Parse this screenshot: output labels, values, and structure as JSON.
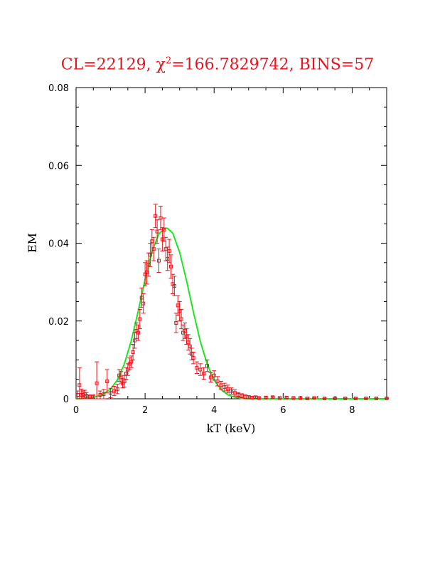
{
  "chart_data": {
    "type": "scatter",
    "title_prefix": "CL=22129, ",
    "title_chi": "χ",
    "title_sup": "2",
    "title_suffix": "=166.7829742, BINS=57",
    "xlabel": "kT (keV)",
    "ylabel": "EM",
    "xlim": [
      0,
      9
    ],
    "ylim": [
      0,
      0.08
    ],
    "x_ticks": [
      "0",
      "2",
      "4",
      "6",
      "8"
    ],
    "y_ticks": [
      "0",
      "0.02",
      "0.04",
      "0.06",
      "0.08"
    ],
    "colors": {
      "data": "#e8141b",
      "model": "#1ee61e",
      "title": "#e8141b"
    },
    "series": [
      {
        "kind": "data-points",
        "x": [
          0.05,
          0.1,
          0.15,
          0.2,
          0.25,
          0.3,
          0.4,
          0.5,
          0.6,
          0.7,
          0.8,
          0.9,
          1.0,
          1.1,
          1.2,
          1.25,
          1.3,
          1.35,
          1.4,
          1.45,
          1.5,
          1.55,
          1.6,
          1.65,
          1.7,
          1.75,
          1.8,
          1.85,
          1.9,
          1.95,
          2.0,
          2.05,
          2.1,
          2.15,
          2.2,
          2.25,
          2.3,
          2.35,
          2.4,
          2.45,
          2.5,
          2.55,
          2.6,
          2.65,
          2.7,
          2.75,
          2.8,
          2.85,
          2.9,
          2.95,
          3.0,
          3.05,
          3.1,
          3.15,
          3.2,
          3.25,
          3.3,
          3.35,
          3.4,
          3.5,
          3.6,
          3.7,
          3.8,
          3.9,
          4.0,
          4.1,
          4.2,
          4.3,
          4.4,
          4.5,
          4.6,
          4.7,
          4.8,
          4.9,
          5.0,
          5.1,
          5.2,
          5.3,
          5.5,
          5.7,
          5.9,
          6.1,
          6.3,
          6.5,
          6.7,
          6.9,
          7.2,
          7.5,
          7.8,
          8.1,
          8.4,
          8.7,
          9.0
        ],
        "y": [
          0.001,
          0.0035,
          0.001,
          0.001,
          0.0012,
          0.0008,
          0.0005,
          0.0005,
          0.004,
          0.001,
          0.0012,
          0.0045,
          0.0015,
          0.002,
          0.0025,
          0.006,
          0.0055,
          0.004,
          0.0045,
          0.0065,
          0.0075,
          0.009,
          0.0095,
          0.012,
          0.015,
          0.0175,
          0.017,
          0.0205,
          0.026,
          0.0245,
          0.032,
          0.0325,
          0.0345,
          0.037,
          0.0405,
          0.0385,
          0.047,
          0.043,
          0.0355,
          0.0465,
          0.041,
          0.0435,
          0.0385,
          0.036,
          0.038,
          0.034,
          0.0295,
          0.029,
          0.0195,
          0.024,
          0.0225,
          0.0205,
          0.017,
          0.0175,
          0.016,
          0.0145,
          0.0135,
          0.0115,
          0.0105,
          0.008,
          0.0075,
          0.0065,
          0.0085,
          0.0055,
          0.006,
          0.0045,
          0.0035,
          0.003,
          0.0025,
          0.002,
          0.0015,
          0.001,
          0.0008,
          0.0005,
          0.0004,
          0.0003,
          0.0004,
          0.0002,
          0.0003,
          0.0004,
          0.0002,
          0.0003,
          0.0002,
          0.0002,
          0.0001,
          0.0002,
          0.0001,
          0.0001,
          0.0001,
          0.0001,
          0.0001,
          0.0001,
          0.0001
        ],
        "err": [
          0.001,
          0.0045,
          0.0015,
          0.001,
          0.001,
          0.0008,
          0.0005,
          0.0005,
          0.0055,
          0.001,
          0.0012,
          0.003,
          0.0012,
          0.0012,
          0.0012,
          0.0015,
          0.0015,
          0.0012,
          0.0015,
          0.0015,
          0.0015,
          0.0015,
          0.0015,
          0.002,
          0.002,
          0.002,
          0.002,
          0.0025,
          0.0025,
          0.0025,
          0.003,
          0.003,
          0.003,
          0.003,
          0.003,
          0.003,
          0.003,
          0.003,
          0.003,
          0.003,
          0.003,
          0.003,
          0.003,
          0.003,
          0.003,
          0.003,
          0.0025,
          0.0025,
          0.0025,
          0.0025,
          0.0025,
          0.0025,
          0.002,
          0.002,
          0.002,
          0.002,
          0.002,
          0.0015,
          0.0015,
          0.0015,
          0.0015,
          0.0015,
          0.0015,
          0.0012,
          0.0012,
          0.0012,
          0.001,
          0.001,
          0.001,
          0.0008,
          0.0008,
          0.0006,
          0.0005,
          0.0005,
          0.0004,
          0.0003,
          0.0003,
          0.0002,
          0.0002,
          0.0002,
          0.0002,
          0.0002,
          0.0002,
          0.0002,
          0.0001,
          0.0001,
          0.0001,
          0.0001,
          0.0001,
          0.0001,
          0.0001,
          0.0001,
          0.0001
        ]
      },
      {
        "kind": "model-curve",
        "x": [
          0.0,
          0.25,
          0.5,
          0.75,
          1.0,
          1.2,
          1.4,
          1.6,
          1.8,
          2.0,
          2.2,
          2.4,
          2.6,
          2.65,
          2.8,
          3.0,
          3.2,
          3.4,
          3.6,
          3.8,
          4.0,
          4.2,
          4.4,
          4.6,
          4.8,
          5.0,
          5.5,
          6.0,
          7.0,
          8.0,
          9.0
        ],
        "y": [
          0.0,
          0.0001,
          0.0004,
          0.001,
          0.0025,
          0.0049,
          0.009,
          0.0149,
          0.0225,
          0.0307,
          0.0378,
          0.0424,
          0.0439,
          0.0438,
          0.0426,
          0.0377,
          0.0304,
          0.0223,
          0.0148,
          0.0089,
          0.0048,
          0.0024,
          0.001,
          0.0004,
          0.0001,
          0.0,
          0.0,
          0.0,
          0.0,
          0.0,
          0.0
        ]
      }
    ]
  }
}
